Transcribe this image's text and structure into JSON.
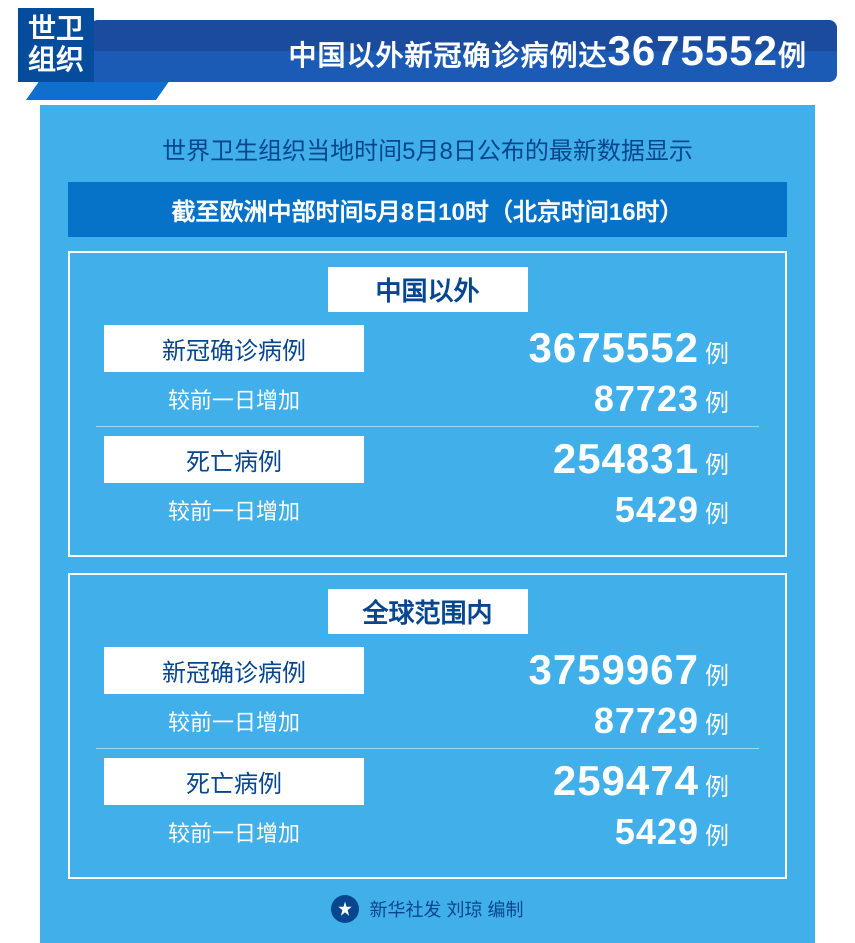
{
  "colors": {
    "dark_blue": "#054c9d",
    "header_blue": "#1a4b9d",
    "panel_blue": "#41b0ea",
    "subbar_blue": "#0673c8",
    "text_blue": "#05468f",
    "white": "#ffffff"
  },
  "header": {
    "org_line1": "世卫",
    "org_line2": "组织",
    "title_prefix": "中国以外新冠确诊病例达",
    "title_number": "3675552",
    "title_suffix": "例"
  },
  "intro": "世界卫生组织当地时间5月8日公布的最新数据显示",
  "subbar": "截至欧洲中部时间5月8日10时（北京时间16时）",
  "sections": [
    {
      "title": "中国以外",
      "groups": [
        {
          "main_label": "新冠确诊病例",
          "main_value": "3675552",
          "main_unit": "例",
          "sub_label": "较前一日增加",
          "sub_value": "87723",
          "sub_unit": "例"
        },
        {
          "main_label": "死亡病例",
          "main_value": "254831",
          "main_unit": "例",
          "sub_label": "较前一日增加",
          "sub_value": "5429",
          "sub_unit": "例"
        }
      ]
    },
    {
      "title": "全球范围内",
      "groups": [
        {
          "main_label": "新冠确诊病例",
          "main_value": "3759967",
          "main_unit": "例",
          "sub_label": "较前一日增加",
          "sub_value": "87729",
          "sub_unit": "例"
        },
        {
          "main_label": "死亡病例",
          "main_value": "259474",
          "main_unit": "例",
          "sub_label": "较前一日增加",
          "sub_value": "5429",
          "sub_unit": "例"
        }
      ]
    }
  ],
  "footer": {
    "text": "新华社发 刘琼 编制",
    "icon_name": "xinhua-logo"
  }
}
